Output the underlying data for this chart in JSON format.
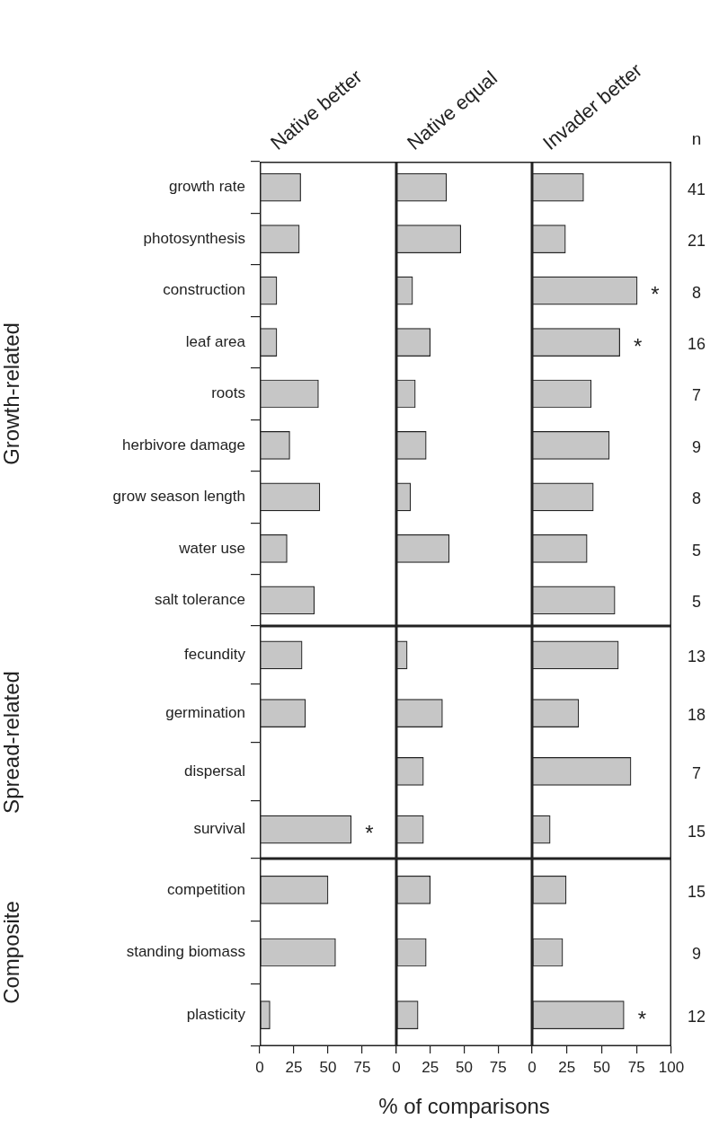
{
  "chart_data": [
    {
      "type": "bar",
      "orientation": "horizontal",
      "title": "Native better",
      "ylabel": "Growth-related",
      "categories": [
        "growth rate",
        "photosynthesis",
        "construction",
        "leaf area",
        "roots",
        "herbivore damage",
        "grow season length",
        "water use",
        "salt tolerance"
      ],
      "values": [
        30,
        29,
        12.5,
        12.5,
        43,
        22,
        44,
        20,
        40
      ],
      "color": "#c6c6c6",
      "xlim": [
        0,
        100
      ],
      "tick_labels": "y"
    },
    {
      "type": "bar",
      "orientation": "horizontal",
      "title": "Native equal",
      "categories": [
        "growth rate",
        "photosynthesis",
        "construction",
        "leaf area",
        "roots",
        "herbivore damage",
        "grow season length",
        "water use",
        "salt tolerance"
      ],
      "values": [
        37,
        47.5,
        12,
        25,
        14,
        22,
        10.5,
        39,
        0
      ],
      "color": "#c6c6c6",
      "xlim": [
        0,
        100
      ],
      "tick_labels": false
    },
    {
      "type": "bar",
      "orientation": "horizontal",
      "title": "Invader better",
      "categories": [
        "growth rate",
        "photosynthesis",
        "construction",
        "leaf area",
        "roots",
        "herbivore damage",
        "grow season length",
        "water use",
        "salt tolerance"
      ],
      "values": [
        37,
        24,
        75.5,
        63,
        42.5,
        55.5,
        44,
        39.5,
        59.5
      ],
      "color": "#c6c6c6",
      "xlim": [
        0,
        100
      ],
      "tick_labels": false,
      "y2label": "n",
      "annotations": [
        {
          "text": "*",
          "x": 75.5,
          "y": "construction"
        },
        {
          "text": "*",
          "x": 63,
          "y": "leaf area"
        },
        "41",
        "21",
        "8",
        "16",
        "7",
        "9",
        "8",
        "5",
        "5"
      ]
    },
    {
      "type": "bar",
      "orientation": "horizontal",
      "ylabel": "Spread-related",
      "categories": [
        "fecundity",
        "germination",
        "dispersal",
        "survival"
      ],
      "values": [
        31,
        33.5,
        0,
        67
      ],
      "color": "#c6c6c6",
      "xlim": [
        0,
        100
      ],
      "tick_labels": "y",
      "annotations": [
        {
          "text": "*",
          "x": 67,
          "y": "survival"
        }
      ]
    },
    {
      "type": "bar",
      "orientation": "horizontal",
      "categories": [
        "fecundity",
        "germination",
        "dispersal",
        "survival"
      ],
      "values": [
        8,
        34,
        20,
        20
      ],
      "color": "#c6c6c6",
      "xlim": [
        0,
        100
      ],
      "tick_labels": false
    },
    {
      "type": "bar",
      "orientation": "horizontal",
      "categories": [
        "fecundity",
        "germination",
        "dispersal",
        "survival"
      ],
      "values": [
        62,
        33.5,
        71,
        13
      ],
      "color": "#c6c6c6",
      "xlim": [
        0,
        100
      ],
      "tick_labels": false,
      "annotations": [
        "13",
        "18",
        "7",
        "15"
      ]
    },
    {
      "type": "bar",
      "orientation": "horizontal",
      "ylabel": "Composite",
      "categories": [
        "competition",
        "standing biomass",
        "plasticity"
      ],
      "values": [
        50,
        55.5,
        7.5
      ],
      "color": "#c6c6c6",
      "xlim": [
        0,
        100
      ],
      "xticks": [
        0,
        25,
        50,
        75,
        {
          "value": 100,
          "label": null
        }
      ]
    },
    {
      "type": "bar",
      "orientation": "horizontal",
      "xlabel": "% of comparisons",
      "categories": [
        "competition",
        "standing biomass",
        "plasticity"
      ],
      "values": [
        25,
        22,
        16
      ],
      "color": "#c6c6c6",
      "xlim": [
        0,
        100
      ],
      "xticks": [
        0,
        25,
        50,
        75,
        {
          "value": 100,
          "label": null
        }
      ],
      "tick_labels": "x"
    },
    {
      "type": "bar",
      "orientation": "horizontal",
      "categories": [
        "competition",
        "standing biomass",
        "plasticity"
      ],
      "values": [
        24.5,
        22,
        66
      ],
      "color": "#c6c6c6",
      "xlim": [
        0,
        100
      ],
      "xticks": [
        0,
        25,
        50,
        75,
        100
      ],
      "tick_labels": "x",
      "annotations": [
        {
          "text": "*",
          "x": 66,
          "y": "plasticity"
        },
        "15",
        "9",
        "12"
      ]
    }
  ]
}
